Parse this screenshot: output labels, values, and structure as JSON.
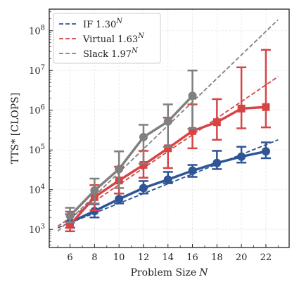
{
  "chart_data": {
    "type": "line",
    "xlabel": "Problem Size",
    "xlabel_var": "N",
    "ylabel": "TTS* [CLOPS]",
    "x_scale": "linear",
    "y_scale": "log",
    "xlim": [
      4.3,
      23.9
    ],
    "ylim": [
      350,
      350000000
    ],
    "x_ticks": [
      6,
      8,
      10,
      12,
      14,
      16,
      18,
      20,
      22
    ],
    "y_ticks": [
      {
        "value": 1000,
        "base": "10",
        "exp": "3"
      },
      {
        "value": 10000,
        "base": "10",
        "exp": "4"
      },
      {
        "value": 100000,
        "base": "10",
        "exp": "5"
      },
      {
        "value": 1000000,
        "base": "10",
        "exp": "6"
      },
      {
        "value": 10000000,
        "base": "10",
        "exp": "7"
      },
      {
        "value": 100000000,
        "base": "10",
        "exp": "8"
      }
    ],
    "grid": true,
    "legend_position": "top-left",
    "series": [
      {
        "name": "IF",
        "rate_base": "1.30",
        "rate_exp": "N",
        "color": "#2f5597",
        "marker": "circle",
        "x": [
          6,
          8,
          10,
          12,
          14,
          16,
          18,
          20,
          22
        ],
        "y": [
          1500,
          2900,
          5800,
          11000,
          18000,
          30000,
          47000,
          68000,
          92000
        ],
        "err_low": [
          1100,
          2000,
          4500,
          8000,
          14500,
          21000,
          33000,
          48000,
          62000
        ],
        "err_high": [
          2400,
          4300,
          8000,
          16500,
          28000,
          42000,
          95000,
          120000,
          155000
        ],
        "fit": {
          "x": [
            5,
            23
          ],
          "y": [
            1100,
            180000
          ]
        }
      },
      {
        "name": "Virtual",
        "rate_base": "1.63",
        "rate_exp": "N",
        "color": "#d64545",
        "marker": "square",
        "x": [
          6,
          8,
          10,
          12,
          14,
          16,
          18,
          20,
          22
        ],
        "y": [
          1300,
          6500,
          17000,
          42000,
          110000,
          300000,
          500000,
          1100000,
          1200000
        ],
        "err_low": [
          900,
          3000,
          8000,
          20000,
          35000,
          110000,
          180000,
          350000,
          370000
        ],
        "err_high": [
          2800,
          13000,
          38000,
          95000,
          650000,
          1400000,
          1900000,
          12000000,
          33000000
        ],
        "fit": {
          "x": [
            5,
            23
          ],
          "y": [
            1200,
            7000000
          ]
        }
      },
      {
        "name": "Slack",
        "rate_base": "1.97",
        "rate_exp": "N",
        "color": "#808080",
        "marker": "circle",
        "x": [
          6,
          8,
          10,
          12,
          14,
          16
        ],
        "y": [
          2200,
          9500,
          33000,
          210000,
          520000,
          2300000
        ],
        "err_low": [
          1500,
          4500,
          11000,
          45000,
          120000,
          340000
        ],
        "err_high": [
          3500,
          19000,
          92000,
          430000,
          1400000,
          10000000
        ],
        "fit": {
          "x": [
            5,
            23
          ],
          "y": [
            900,
            190000000
          ]
        }
      }
    ]
  }
}
